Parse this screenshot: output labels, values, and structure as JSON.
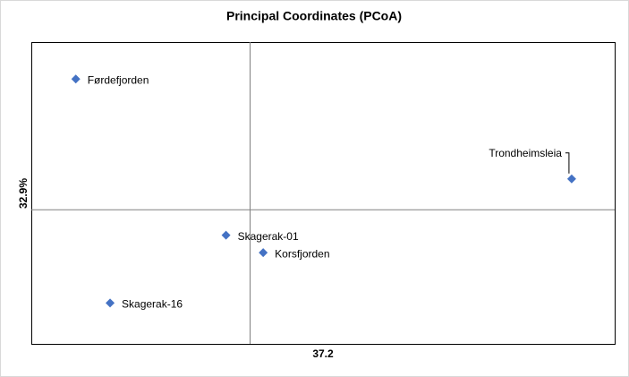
{
  "chart_data": {
    "type": "scatter",
    "title": "Principal Coordinates (PCoA)",
    "x_label": "37.2",
    "y_label": "32.9%",
    "series": [
      {
        "color": "#4472c4",
        "labels": [
          "Førdefjorden",
          "Trondheimsleia",
          "Skagerak-01",
          "Korsfjorden",
          "Skagerak-16"
        ],
        "x": [
          -0.239,
          0.441,
          -0.033,
          0.018,
          -0.192
        ],
        "values": [
          0.195,
          0.046,
          -0.038,
          -0.064,
          -0.139
        ]
      }
    ],
    "xlim": [
      -0.3,
      0.5
    ],
    "ylim": [
      -0.2,
      0.25
    ]
  }
}
